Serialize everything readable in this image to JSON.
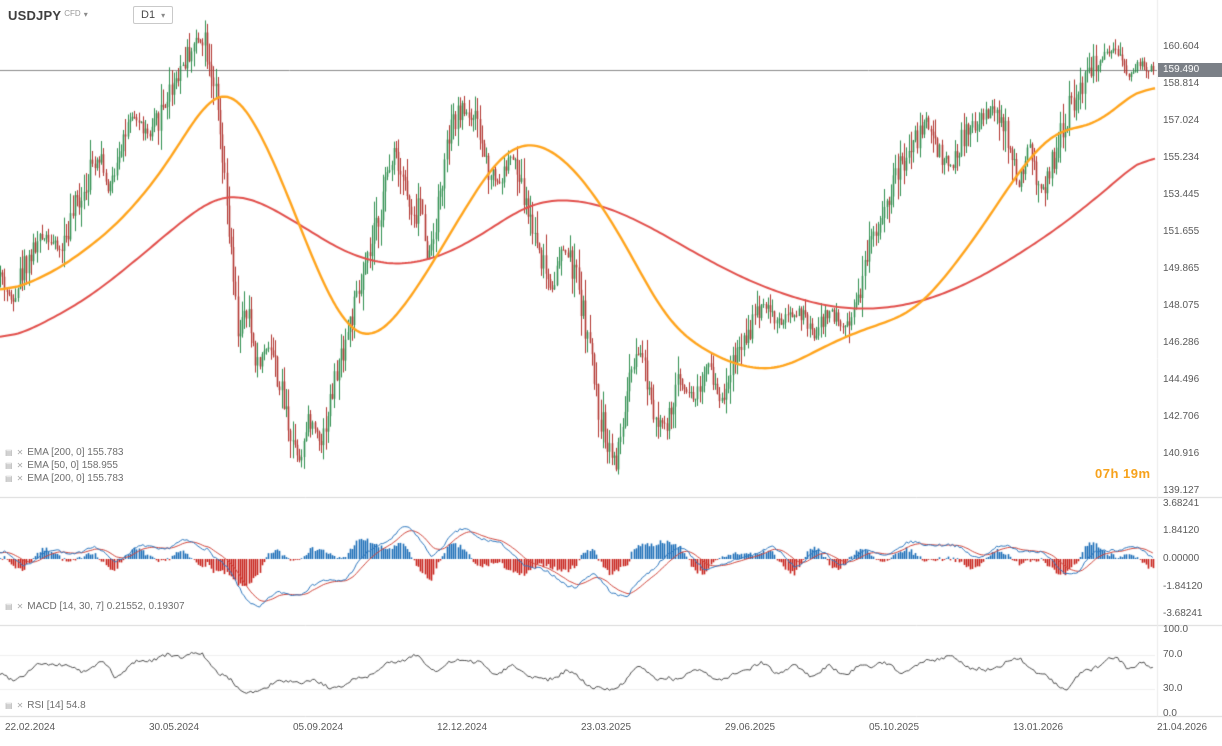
{
  "header": {
    "symbol": "USDJPY",
    "market_type": "CFD",
    "timeframe": "D1"
  },
  "icons": {
    "chevron": "▾",
    "legend_handle": "▤",
    "legend_close": "✕"
  },
  "legends": {
    "main": [
      "EMA [200, 0] 155.783",
      "EMA [50, 0] 158.955",
      "EMA [200, 0] 155.783"
    ],
    "macd": "MACD [14, 30, 7] 0.21552, 0.19307",
    "rsi": "RSI [14] 54.8"
  },
  "countdown": "07h 19m",
  "current_price": "159.490",
  "colors": {
    "up_candle": "#2f8f4f",
    "down_candle": "#b23530",
    "ema_fast": "#ffa51e",
    "ema_slow": "#e2504c",
    "macd_line": "#3079c0",
    "macd_signal": "#d2473d",
    "macd_hist_pos": "#1d6fb8",
    "macd_hist_neg": "#c8231c",
    "rsi_line": "#4d4d4d",
    "current_price_line": "#8a8a8a",
    "current_price_bg": "#7b8087",
    "countdown": "#f7a21b",
    "separator": "#d9d9d9",
    "axis_text": "#5a5a5a"
  },
  "chart_data": {
    "type": "candlestick",
    "symbol": "USDJPY",
    "market_type": "CFD",
    "timeframe": "D1",
    "title": "USDJPY CFD, D1",
    "price_ticks": [
      "160.604",
      "158.814",
      "157.024",
      "155.234",
      "153.445",
      "151.655",
      "149.865",
      "148.075",
      "146.286",
      "144.496",
      "142.706",
      "140.916",
      "139.127"
    ],
    "time_ticks": [
      "22.02.2024",
      "30.05.2024",
      "05.09.2024",
      "12.12.2024",
      "23.03.2025",
      "29.06.2025",
      "05.10.2025",
      "13.01.2026",
      "21.04.2026"
    ],
    "price_range_visible": [
      139.127,
      160.604
    ],
    "last_price": 159.49,
    "price_keypoints": [
      [
        0.0,
        149.6
      ],
      [
        0.009,
        148.3
      ],
      [
        0.022,
        150.2
      ],
      [
        0.039,
        151.6
      ],
      [
        0.052,
        150.7
      ],
      [
        0.065,
        152.8
      ],
      [
        0.078,
        154.6
      ],
      [
        0.087,
        155.6
      ],
      [
        0.094,
        153.4
      ],
      [
        0.104,
        156.0
      ],
      [
        0.117,
        157.2
      ],
      [
        0.13,
        156.2
      ],
      [
        0.143,
        158.0
      ],
      [
        0.156,
        159.6
      ],
      [
        0.169,
        160.8
      ],
      [
        0.177,
        161.2
      ],
      [
        0.186,
        158.8
      ],
      [
        0.197,
        152.5
      ],
      [
        0.206,
        146.9
      ],
      [
        0.215,
        147.6
      ],
      [
        0.223,
        145.2
      ],
      [
        0.234,
        146.4
      ],
      [
        0.244,
        143.8
      ],
      [
        0.253,
        141.8
      ],
      [
        0.26,
        140.7
      ],
      [
        0.268,
        142.6
      ],
      [
        0.279,
        141.6
      ],
      [
        0.29,
        144.4
      ],
      [
        0.303,
        147.2
      ],
      [
        0.313,
        148.9
      ],
      [
        0.322,
        150.8
      ],
      [
        0.333,
        153.6
      ],
      [
        0.342,
        155.9
      ],
      [
        0.351,
        154.0
      ],
      [
        0.358,
        151.8
      ],
      [
        0.364,
        153.4
      ],
      [
        0.371,
        150.3
      ],
      [
        0.379,
        152.6
      ],
      [
        0.39,
        156.4
      ],
      [
        0.4,
        157.6
      ],
      [
        0.411,
        157.2
      ],
      [
        0.422,
        155.0
      ],
      [
        0.433,
        154.0
      ],
      [
        0.443,
        155.4
      ],
      [
        0.455,
        153.2
      ],
      [
        0.468,
        150.8
      ],
      [
        0.478,
        148.9
      ],
      [
        0.489,
        150.9
      ],
      [
        0.5,
        149.4
      ],
      [
        0.511,
        146.2
      ],
      [
        0.519,
        143.0
      ],
      [
        0.528,
        141.4
      ],
      [
        0.535,
        140.4
      ],
      [
        0.545,
        144.2
      ],
      [
        0.556,
        145.9
      ],
      [
        0.567,
        143.2
      ],
      [
        0.578,
        142.0
      ],
      [
        0.589,
        144.6
      ],
      [
        0.602,
        143.6
      ],
      [
        0.615,
        145.2
      ],
      [
        0.625,
        143.4
      ],
      [
        0.636,
        145.6
      ],
      [
        0.649,
        146.9
      ],
      [
        0.662,
        148.3
      ],
      [
        0.675,
        147.2
      ],
      [
        0.693,
        147.8
      ],
      [
        0.706,
        146.6
      ],
      [
        0.719,
        147.9
      ],
      [
        0.732,
        147.0
      ],
      [
        0.743,
        148.3
      ],
      [
        0.753,
        150.9
      ],
      [
        0.766,
        152.8
      ],
      [
        0.779,
        154.6
      ],
      [
        0.792,
        155.8
      ],
      [
        0.803,
        157.1
      ],
      [
        0.814,
        155.6
      ],
      [
        0.824,
        154.8
      ],
      [
        0.835,
        156.2
      ],
      [
        0.848,
        156.9
      ],
      [
        0.861,
        157.6
      ],
      [
        0.873,
        156.3
      ],
      [
        0.883,
        153.8
      ],
      [
        0.893,
        155.9
      ],
      [
        0.902,
        153.3
      ],
      [
        0.911,
        154.6
      ],
      [
        0.922,
        156.8
      ],
      [
        0.933,
        158.3
      ],
      [
        0.945,
        159.6
      ],
      [
        0.957,
        160.1
      ],
      [
        0.968,
        160.3
      ],
      [
        0.978,
        159.3
      ],
      [
        0.988,
        159.8
      ],
      [
        1.0,
        159.49
      ]
    ],
    "ema50": {
      "label": "EMA [50, 0]",
      "value": 158.955,
      "keypoints": [
        [
          0.0,
          148.6
        ],
        [
          0.05,
          149.8
        ],
        [
          0.1,
          151.9
        ],
        [
          0.14,
          154.5
        ],
        [
          0.17,
          157.3
        ],
        [
          0.19,
          158.8
        ],
        [
          0.21,
          158.2
        ],
        [
          0.24,
          154.8
        ],
        [
          0.27,
          150.4
        ],
        [
          0.29,
          147.8
        ],
        [
          0.31,
          146.3
        ],
        [
          0.33,
          146.6
        ],
        [
          0.36,
          148.8
        ],
        [
          0.39,
          151.6
        ],
        [
          0.42,
          154.4
        ],
        [
          0.44,
          155.8
        ],
        [
          0.46,
          156.1
        ],
        [
          0.48,
          155.6
        ],
        [
          0.5,
          154.6
        ],
        [
          0.53,
          152.2
        ],
        [
          0.55,
          150.2
        ],
        [
          0.57,
          148.0
        ],
        [
          0.59,
          146.6
        ],
        [
          0.61,
          146.0
        ],
        [
          0.63,
          145.3
        ],
        [
          0.65,
          145.1
        ],
        [
          0.67,
          144.9
        ],
        [
          0.69,
          145.4
        ],
        [
          0.72,
          146.3
        ],
        [
          0.75,
          147.0
        ],
        [
          0.78,
          147.5
        ],
        [
          0.8,
          148.2
        ],
        [
          0.82,
          149.6
        ],
        [
          0.85,
          151.8
        ],
        [
          0.87,
          153.6
        ],
        [
          0.89,
          155.2
        ],
        [
          0.91,
          156.4
        ],
        [
          0.925,
          156.9
        ],
        [
          0.94,
          156.5
        ],
        [
          0.96,
          157.3
        ],
        [
          0.98,
          158.4
        ],
        [
          1.0,
          158.955
        ]
      ]
    },
    "ema200": {
      "label": "EMA [200, 0]",
      "value": 155.783,
      "keypoints": [
        [
          0.0,
          146.3
        ],
        [
          0.04,
          147.3
        ],
        [
          0.08,
          148.6
        ],
        [
          0.12,
          150.4
        ],
        [
          0.16,
          152.3
        ],
        [
          0.19,
          153.5
        ],
        [
          0.22,
          153.3
        ],
        [
          0.26,
          152.0
        ],
        [
          0.3,
          150.6
        ],
        [
          0.34,
          150.0
        ],
        [
          0.38,
          150.4
        ],
        [
          0.42,
          151.6
        ],
        [
          0.45,
          152.8
        ],
        [
          0.48,
          153.3
        ],
        [
          0.52,
          153.0
        ],
        [
          0.56,
          152.0
        ],
        [
          0.6,
          150.7
        ],
        [
          0.64,
          149.5
        ],
        [
          0.68,
          148.6
        ],
        [
          0.72,
          148.0
        ],
        [
          0.76,
          147.9
        ],
        [
          0.8,
          148.3
        ],
        [
          0.84,
          149.2
        ],
        [
          0.88,
          150.5
        ],
        [
          0.92,
          152.0
        ],
        [
          0.96,
          153.8
        ],
        [
          1.0,
          155.783
        ]
      ]
    },
    "macd": {
      "label": "MACD [14, 30, 7]",
      "values": [
        0.21552,
        0.19307
      ],
      "ticks": [
        "3.68241",
        "1.84120",
        "0.00000",
        "-1.84120",
        "-3.68241"
      ],
      "range": [
        -3.68241,
        3.68241
      ],
      "keypoints": [
        [
          0.0,
          0.3
        ],
        [
          0.02,
          -0.2
        ],
        [
          0.05,
          0.5
        ],
        [
          0.08,
          0.6
        ],
        [
          0.1,
          0.1
        ],
        [
          0.13,
          0.8
        ],
        [
          0.16,
          1.0
        ],
        [
          0.18,
          0.9
        ],
        [
          0.195,
          -0.6
        ],
        [
          0.21,
          -2.3
        ],
        [
          0.225,
          -3.1
        ],
        [
          0.24,
          -2.5
        ],
        [
          0.26,
          -2.1
        ],
        [
          0.28,
          -1.7
        ],
        [
          0.3,
          -1.1
        ],
        [
          0.32,
          0.3
        ],
        [
          0.335,
          1.4
        ],
        [
          0.35,
          2.1
        ],
        [
          0.36,
          1.5
        ],
        [
          0.375,
          0.4
        ],
        [
          0.39,
          1.3
        ],
        [
          0.405,
          2.0
        ],
        [
          0.42,
          1.5
        ],
        [
          0.44,
          0.5
        ],
        [
          0.46,
          -0.4
        ],
        [
          0.48,
          -1.3
        ],
        [
          0.5,
          -1.7
        ],
        [
          0.515,
          -1.2
        ],
        [
          0.53,
          -2.0
        ],
        [
          0.545,
          -2.5
        ],
        [
          0.56,
          -1.2
        ],
        [
          0.575,
          0.3
        ],
        [
          0.59,
          0.6
        ],
        [
          0.61,
          -0.4
        ],
        [
          0.63,
          -0.6
        ],
        [
          0.65,
          0.5
        ],
        [
          0.67,
          0.6
        ],
        [
          0.69,
          -0.3
        ],
        [
          0.71,
          0.4
        ],
        [
          0.73,
          -0.2
        ],
        [
          0.75,
          0.3
        ],
        [
          0.77,
          0.5
        ],
        [
          0.79,
          0.9
        ],
        [
          0.81,
          1.2
        ],
        [
          0.83,
          0.6
        ],
        [
          0.85,
          0.3
        ],
        [
          0.87,
          0.7
        ],
        [
          0.89,
          0.8
        ],
        [
          0.905,
          0.2
        ],
        [
          0.92,
          -0.7
        ],
        [
          0.935,
          -0.9
        ],
        [
          0.95,
          0.3
        ],
        [
          0.965,
          0.9
        ],
        [
          0.98,
          0.6
        ],
        [
          1.0,
          0.22
        ]
      ]
    },
    "rsi": {
      "label": "RSI [14]",
      "value": 54.8,
      "ticks": [
        "100.0",
        "70.0",
        "30.0",
        "0.0"
      ],
      "range": [
        0,
        100
      ],
      "keypoints": [
        [
          0.0,
          48
        ],
        [
          0.01,
          38
        ],
        [
          0.03,
          55
        ],
        [
          0.05,
          60
        ],
        [
          0.07,
          52
        ],
        [
          0.09,
          63
        ],
        [
          0.1,
          45
        ],
        [
          0.12,
          62
        ],
        [
          0.14,
          66
        ],
        [
          0.16,
          70
        ],
        [
          0.175,
          72
        ],
        [
          0.19,
          50
        ],
        [
          0.21,
          30
        ],
        [
          0.225,
          24
        ],
        [
          0.24,
          40
        ],
        [
          0.255,
          33
        ],
        [
          0.27,
          42
        ],
        [
          0.285,
          30
        ],
        [
          0.3,
          38
        ],
        [
          0.315,
          45
        ],
        [
          0.33,
          55
        ],
        [
          0.345,
          62
        ],
        [
          0.36,
          68
        ],
        [
          0.37,
          58
        ],
        [
          0.38,
          50
        ],
        [
          0.39,
          60
        ],
        [
          0.4,
          67
        ],
        [
          0.415,
          62
        ],
        [
          0.43,
          50
        ],
        [
          0.445,
          56
        ],
        [
          0.46,
          45
        ],
        [
          0.475,
          38
        ],
        [
          0.49,
          52
        ],
        [
          0.5,
          44
        ],
        [
          0.515,
          34
        ],
        [
          0.53,
          28
        ],
        [
          0.545,
          45
        ],
        [
          0.555,
          55
        ],
        [
          0.57,
          42
        ],
        [
          0.585,
          38
        ],
        [
          0.6,
          52
        ],
        [
          0.615,
          46
        ],
        [
          0.63,
          42
        ],
        [
          0.645,
          55
        ],
        [
          0.66,
          60
        ],
        [
          0.675,
          48
        ],
        [
          0.69,
          55
        ],
        [
          0.705,
          44
        ],
        [
          0.72,
          56
        ],
        [
          0.735,
          50
        ],
        [
          0.75,
          58
        ],
        [
          0.765,
          62
        ],
        [
          0.78,
          50
        ],
        [
          0.795,
          56
        ],
        [
          0.81,
          65
        ],
        [
          0.825,
          68
        ],
        [
          0.84,
          58
        ],
        [
          0.855,
          52
        ],
        [
          0.87,
          62
        ],
        [
          0.885,
          65
        ],
        [
          0.9,
          48
        ],
        [
          0.915,
          35
        ],
        [
          0.925,
          28
        ],
        [
          0.94,
          50
        ],
        [
          0.955,
          62
        ],
        [
          0.97,
          68
        ],
        [
          0.98,
          55
        ],
        [
          0.99,
          60
        ],
        [
          1.0,
          54.8
        ]
      ]
    }
  }
}
